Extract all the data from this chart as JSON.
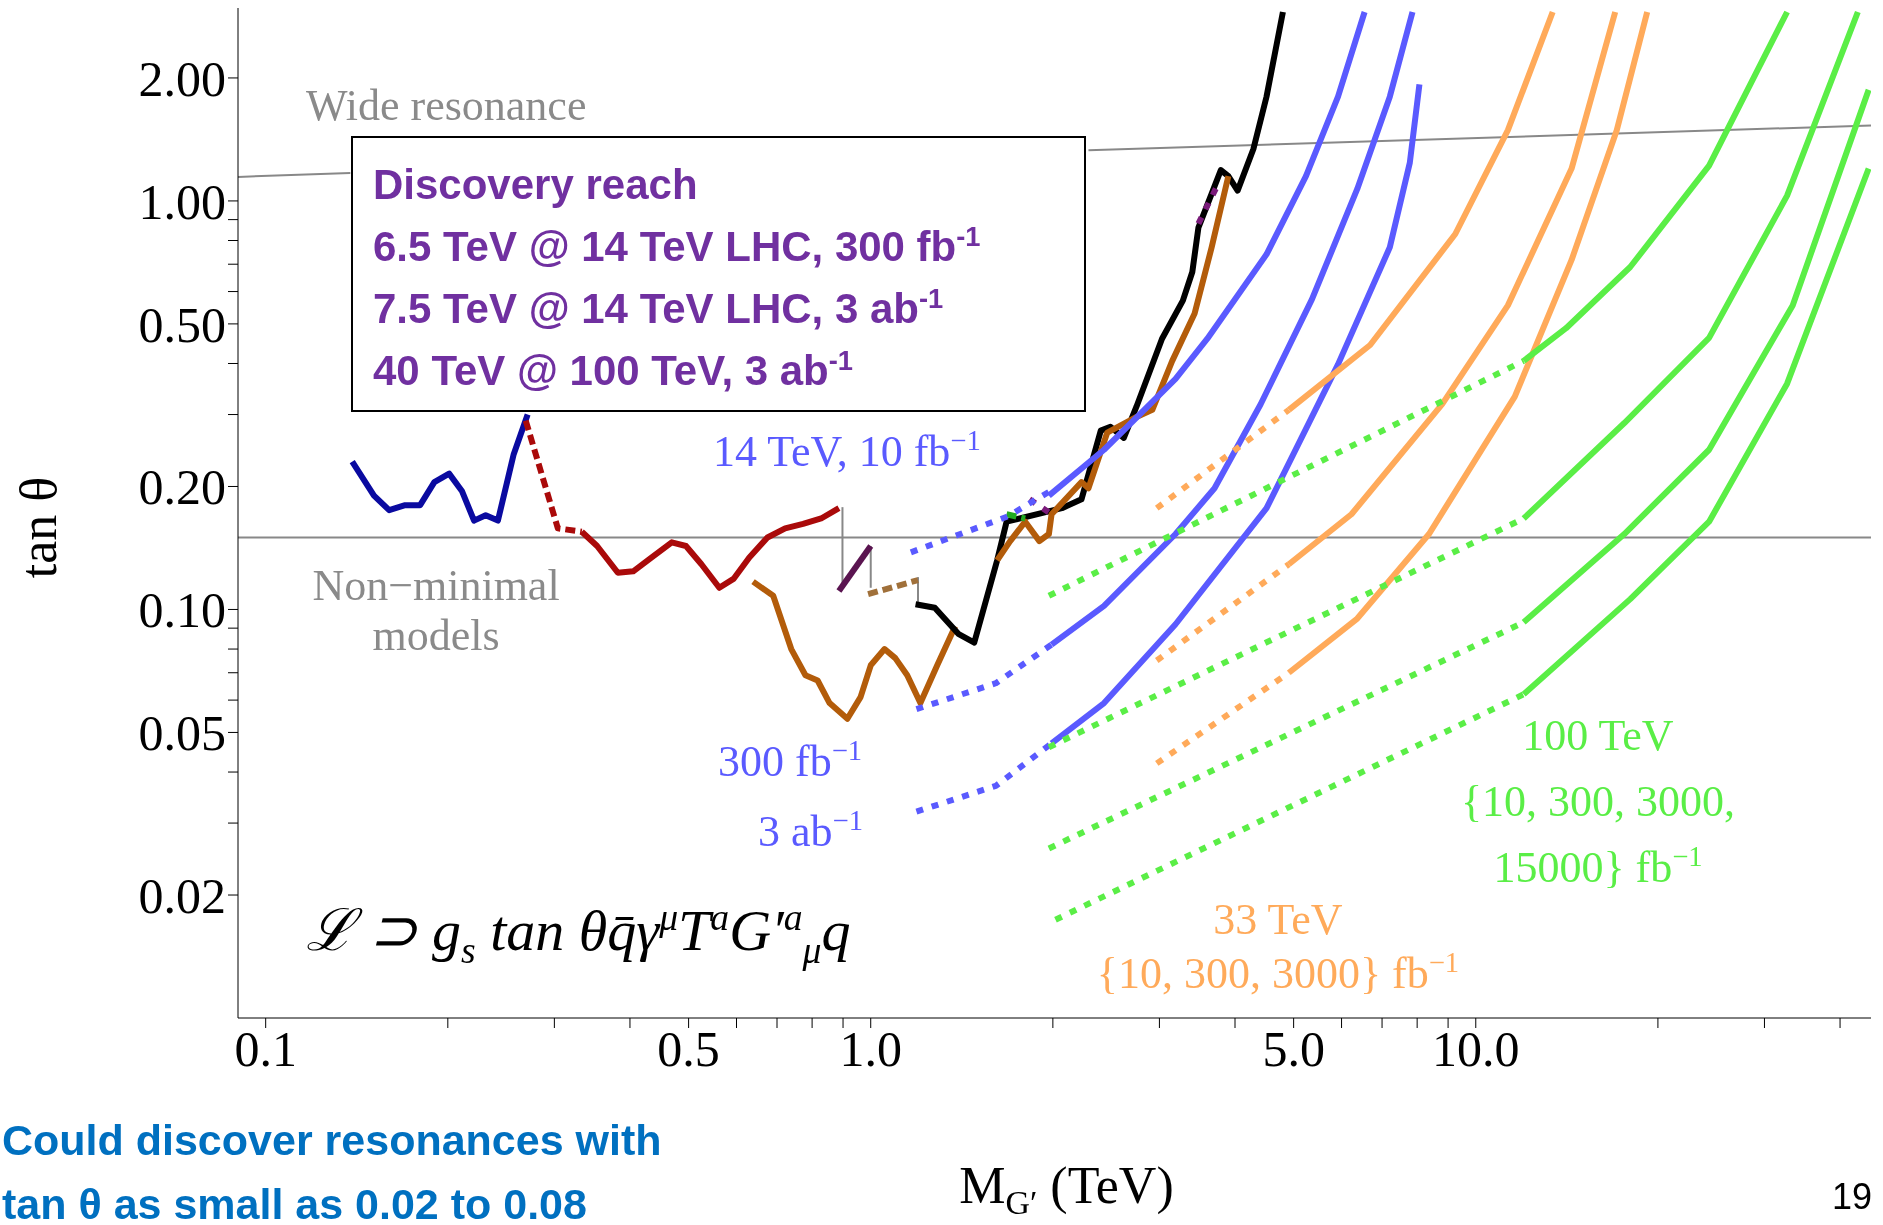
{
  "chart_data": {
    "type": "line",
    "xlabel": "M$_{G′}$ (TeV)",
    "ylabel": "tan θ",
    "log": "xy",
    "xlim": [
      0.09,
      45
    ],
    "ylim": [
      0.01,
      3
    ],
    "xticks": [
      0.1,
      {
        "value": 0.2,
        "label": null
      },
      {
        "value": 0.3,
        "label": null
      },
      {
        "value": 0.4,
        "label": null
      },
      0.5,
      {
        "value": 0.6,
        "label": null
      },
      {
        "value": 0.7,
        "label": null
      },
      {
        "value": 0.8,
        "label": null
      },
      {
        "value": 0.9,
        "label": null
      },
      {
        "value": 1,
        "label": "1.0"
      },
      {
        "value": 2,
        "label": null
      },
      {
        "value": 3,
        "label": null
      },
      {
        "value": 4,
        "label": null
      },
      {
        "value": 5,
        "label": "5.0"
      },
      {
        "value": 6,
        "label": null
      },
      {
        "value": 7,
        "label": null
      },
      {
        "value": 8,
        "label": null
      },
      {
        "value": 9,
        "label": null
      },
      {
        "value": 10,
        "label": "10.0"
      },
      {
        "value": 20,
        "label": null
      },
      {
        "value": 30,
        "label": null
      },
      {
        "value": 40,
        "label": null
      }
    ],
    "yticks": [
      0.02,
      {
        "value": 0.03,
        "label": null
      },
      {
        "value": 0.04,
        "label": null
      },
      0.05,
      {
        "value": 0.06,
        "label": null
      },
      {
        "value": 0.07,
        "label": null
      },
      {
        "value": 0.08,
        "label": null
      },
      {
        "value": 0.09,
        "label": null
      },
      {
        "value": 0.1,
        "label": "0.10"
      },
      {
        "value": 0.2,
        "label": "0.20"
      },
      {
        "value": 0.3,
        "label": null
      },
      {
        "value": 0.4,
        "label": null
      },
      {
        "value": 0.5,
        "label": "0.50"
      },
      {
        "value": 0.6,
        "label": null
      },
      {
        "value": 0.7,
        "label": null
      },
      {
        "value": 0.8,
        "label": null
      },
      {
        "value": 0.9,
        "label": null
      },
      {
        "value": 1,
        "label": "1.00"
      },
      {
        "value": 2,
        "label": "2.00"
      }
    ],
    "ref_lines": [
      {
        "axis": "y",
        "value": 0.15,
        "color": "#888888"
      }
    ],
    "series": [
      {
        "color": "#888888",
        "line_style": "solid",
        "x": [
          0.09,
          0.138
        ],
        "values": [
          1.145,
          1.17
        ]
      },
      {
        "color": "#888888",
        "line_style": "solid",
        "x": [
          2.29,
          45
        ],
        "values": [
          1.33,
          1.53
        ]
      },
      {
        "color": "#0a0aa0",
        "line_style": "solid",
        "x": [
          0.139,
          0.151,
          0.16,
          0.17,
          0.18,
          0.19,
          0.201,
          0.211,
          0.221,
          0.231,
          0.242,
          0.257,
          0.271
        ],
        "values": [
          0.23,
          0.19,
          0.175,
          0.18,
          0.18,
          0.205,
          0.215,
          0.195,
          0.165,
          0.17,
          0.165,
          0.24,
          0.3
        ]
      },
      {
        "color": "#aa0a0a",
        "line_style": "dashed",
        "x": [
          0.269,
          0.304,
          0.333
        ],
        "values": [
          0.29,
          0.158,
          0.155
        ]
      },
      {
        "color": "#aa0a0a",
        "line_style": "solid",
        "x": [
          0.333,
          0.353,
          0.382,
          0.405,
          0.434,
          0.469,
          0.495,
          0.525,
          0.562,
          0.594,
          0.63,
          0.675,
          0.722,
          0.773,
          0.828,
          0.886
        ],
        "values": [
          0.155,
          0.143,
          0.123,
          0.124,
          0.134,
          0.146,
          0.143,
          0.129,
          0.113,
          0.119,
          0.134,
          0.15,
          0.158,
          0.162,
          0.167,
          0.177
        ]
      },
      {
        "color": "#b35c0a",
        "line_style": "solid",
        "x": [
          0.639,
          0.69,
          0.739,
          0.78,
          0.817,
          0.855,
          0.915,
          0.962,
          1.0,
          1.054,
          1.098,
          1.149,
          1.208,
          1.288,
          1.379
        ],
        "values": [
          0.117,
          0.108,
          0.08,
          0.069,
          0.067,
          0.059,
          0.054,
          0.061,
          0.073,
          0.08,
          0.076,
          0.069,
          0.059,
          0.073,
          0.091
        ]
      },
      {
        "color": "#888888",
        "line_style": "solid",
        "x": [
          0.898,
          0.898
        ],
        "values": [
          0.178,
          0.113
        ]
      },
      {
        "color": "#888888",
        "line_style": "solid",
        "x": [
          1.0,
          1.0
        ],
        "values": [
          0.143,
          0.113
        ]
      },
      {
        "color": "#888888",
        "line_style": "solid",
        "x": [
          1.197,
          1.197
        ],
        "values": [
          0.12,
          0.103
        ]
      },
      {
        "color": "#5a1450",
        "line_style": "solid",
        "x": [
          0.886,
          1.0
        ],
        "values": [
          0.111,
          0.143
        ]
      },
      {
        "color": "#a0703a",
        "line_style": "dashed",
        "x": [
          0.99,
          1.197
        ],
        "values": [
          0.109,
          0.118
        ]
      },
      {
        "color": "#000000",
        "line_style": "solid",
        "x": [
          1.186,
          1.276,
          1.398,
          1.483,
          1.618,
          1.677,
          2.07,
          2.23,
          2.4,
          2.49,
          2.62,
          2.75,
          3.03,
          3.28,
          3.4,
          3.48,
          3.79,
          3.9,
          4.04,
          4.29,
          4.51,
          4.8
        ],
        "values": [
          0.103,
          0.101,
          0.087,
          0.083,
          0.132,
          0.164,
          0.177,
          0.186,
          0.274,
          0.28,
          0.263,
          0.314,
          0.46,
          0.57,
          0.67,
          0.86,
          1.19,
          1.15,
          1.06,
          1.34,
          1.8,
          2.9
        ]
      },
      {
        "color": "#b35c0a",
        "line_style": "solid",
        "x": [
          1.618,
          1.7,
          1.8,
          1.9,
          1.97,
          1.99,
          2.23,
          2.29,
          2.46,
          2.75,
          2.92,
          3.15,
          3.43,
          3.66,
          3.9
        ],
        "values": [
          0.132,
          0.147,
          0.164,
          0.147,
          0.153,
          0.171,
          0.205,
          0.198,
          0.271,
          0.296,
          0.308,
          0.406,
          0.53,
          0.77,
          1.15
        ]
      },
      {
        "color": "#7a1a7a",
        "line_style": "dotted",
        "x": [
          1.83,
          1.99
        ],
        "values": [
          0.186,
          0.171
        ]
      },
      {
        "color": "#7a1a7a",
        "line_style": "dotted",
        "x": [
          3.48,
          3.74
        ],
        "values": [
          0.88,
          1.09
        ]
      },
      {
        "color": "#22aa22",
        "line_style": "dashed",
        "x": [
          1.677,
          1.8
        ],
        "values": [
          0.171,
          0.167
        ]
      },
      {
        "color": "#5a5aff",
        "line_style": "dotted",
        "x": [
          1.165,
          1.685,
          1.97
        ],
        "values": [
          0.138,
          0.169,
          0.194
        ]
      },
      {
        "color": "#5a5aff",
        "line_style": "solid",
        "x": [
          1.97,
          2.43,
          3.19,
          3.6,
          4.51,
          5.24,
          5.92,
          6.55
        ],
        "values": [
          0.19,
          0.246,
          0.367,
          0.46,
          0.74,
          1.15,
          1.8,
          2.9
        ]
      },
      {
        "color": "#5a5aff",
        "line_style": "dotted",
        "x": [
          1.19,
          1.61,
          1.99
        ],
        "values": [
          0.057,
          0.066,
          0.082
        ]
      },
      {
        "color": "#5a5aff",
        "line_style": "solid",
        "x": [
          1.99,
          2.43,
          3.19,
          3.7,
          4.41,
          5.36,
          6.37,
          7.21,
          7.86
        ],
        "values": [
          0.082,
          0.102,
          0.153,
          0.198,
          0.318,
          0.574,
          1.07,
          1.8,
          2.9
        ]
      },
      {
        "color": "#5a5aff",
        "line_style": "dotted",
        "x": [
          1.19,
          1.61,
          1.99
        ],
        "values": [
          0.032,
          0.037,
          0.047
        ]
      },
      {
        "color": "#5a5aff",
        "line_style": "solid",
        "x": [
          1.99,
          2.43,
          3.19,
          4.51,
          5.92,
          7.21,
          7.78,
          8.07
        ],
        "values": [
          0.047,
          0.059,
          0.092,
          0.177,
          0.398,
          0.77,
          1.24,
          1.93
        ]
      },
      {
        "color": "#ffaa5a",
        "line_style": "dotted",
        "x": [
          2.97,
          4.91
        ],
        "values": [
          0.177,
          0.308
        ]
      },
      {
        "color": "#ffaa5a",
        "line_style": "solid",
        "x": [
          4.91,
          6.69,
          9.25,
          11.3,
          13.4
        ],
        "values": [
          0.308,
          0.444,
          0.83,
          1.49,
          2.9
        ]
      },
      {
        "color": "#ffaa5a",
        "line_style": "dotted",
        "x": [
          2.97,
          4.91
        ],
        "values": [
          0.075,
          0.129
        ]
      },
      {
        "color": "#ffaa5a",
        "line_style": "solid",
        "x": [
          4.91,
          6.23,
          8.8,
          11.3,
          14.4,
          17
        ],
        "values": [
          0.129,
          0.171,
          0.318,
          0.555,
          1.2,
          2.9
        ]
      },
      {
        "color": "#ffaa5a",
        "line_style": "dotted",
        "x": [
          2.97,
          4.91
        ],
        "values": [
          0.042,
          0.07
        ]
      },
      {
        "color": "#ffaa5a",
        "line_style": "solid",
        "x": [
          4.91,
          6.37,
          8.37,
          11.6,
          14.4,
          17.1,
          19.2
        ],
        "values": [
          0.07,
          0.095,
          0.153,
          0.332,
          0.717,
          1.49,
          2.9
        ]
      },
      {
        "color": "#5aee46",
        "line_style": "dotted",
        "x": [
          1.97,
          12
        ],
        "values": [
          0.108,
          0.406
        ]
      },
      {
        "color": "#5aee46",
        "line_style": "solid",
        "x": [
          12,
          14.1,
          18,
          24.3,
          32.7
        ],
        "values": [
          0.406,
          0.488,
          0.689,
          1.22,
          2.9
        ]
      },
      {
        "color": "#5aee46",
        "line_style": "dotted",
        "x": [
          1.97,
          12
        ],
        "values": [
          0.046,
          0.167
        ]
      },
      {
        "color": "#5aee46",
        "line_style": "solid",
        "x": [
          12,
          17.6,
          24.3,
          32.7,
          42.8
        ],
        "values": [
          0.167,
          0.286,
          0.462,
          1.03,
          2.9
        ]
      },
      {
        "color": "#5aee46",
        "line_style": "dotted",
        "x": [
          1.97,
          12
        ],
        "values": [
          0.026,
          0.093
        ]
      },
      {
        "color": "#5aee46",
        "line_style": "solid",
        "x": [
          12,
          17.6,
          24.3,
          33.4,
          44.6
        ],
        "values": [
          0.093,
          0.153,
          0.246,
          0.555,
          1.87
        ]
      },
      {
        "color": "#5aee46",
        "line_style": "dotted",
        "x": [
          2.02,
          12
        ],
        "values": [
          0.0174,
          0.062
        ]
      },
      {
        "color": "#5aee46",
        "line_style": "solid",
        "x": [
          12,
          18,
          24.3,
          32.7,
          44.6
        ],
        "values": [
          0.062,
          0.106,
          0.164,
          0.357,
          1.2
        ]
      }
    ],
    "annotations": [
      "Wide resonance",
      "Non−minimal\nmodels",
      "Discovery reach\n6.5 TeV @ 14 TeV LHC, 300 fb$^{-1}$\n7.5 TeV @ 14 TeV LHC, 3 ab$^{-1}$\n40 TeV @ 100 TeV, 3 ab$^{-1}$",
      "14 TeV, 10 fb$^{−1}$",
      "300 fb$^{−1}$",
      "3 ab$^{−1}$",
      "ℒ ⊃ g$_{s}$ tan θq̄γ$^{μ}$T$^{a}$G′$^{a}$$_{μ}$q",
      "33 TeV\n{10, 300, 3000} fb$^{−1}$",
      "100 TeV\n{10, 300, 3000,\n15000} fb$^{−1}$",
      "Could discover resonances with\ntan θ as small as 0.02 to 0.08",
      "19"
    ]
  }
}
